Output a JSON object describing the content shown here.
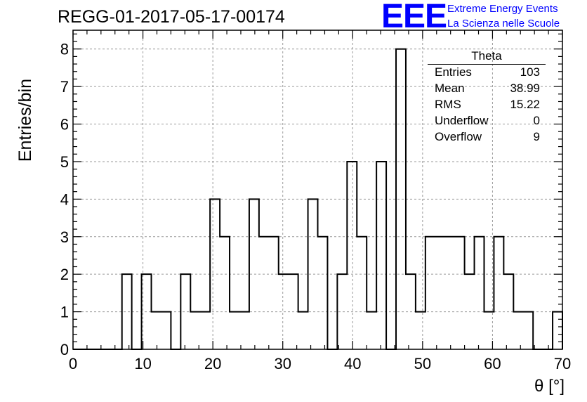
{
  "run_id": "REGG-01-2017-05-17-00174",
  "logo": {
    "mark": "EEE",
    "line1": "Extreme Energy Events",
    "line2": "La Scienza nelle Scuole",
    "color": "#0000ff"
  },
  "stats_box": {
    "title": "Theta",
    "rows": [
      {
        "label": "Entries",
        "value": "103"
      },
      {
        "label": "Mean",
        "value": "38.99"
      },
      {
        "label": "RMS",
        "value": "15.22"
      },
      {
        "label": "Underflow",
        "value": "0"
      },
      {
        "label": "Overflow",
        "value": "9"
      }
    ]
  },
  "chart_data": {
    "type": "bar",
    "style": "step-histogram",
    "xlabel": "θ [°]",
    "ylabel": "Entries/bin",
    "xlim": [
      0,
      70
    ],
    "ylim": [
      0,
      8.5
    ],
    "bin_width": 1.4,
    "bins": [
      {
        "x0": 7.0,
        "x1": 8.4,
        "count": 2
      },
      {
        "x0": 9.8,
        "x1": 11.2,
        "count": 2
      },
      {
        "x0": 11.2,
        "x1": 12.6,
        "count": 1
      },
      {
        "x0": 12.6,
        "x1": 14.0,
        "count": 1
      },
      {
        "x0": 15.4,
        "x1": 16.8,
        "count": 2
      },
      {
        "x0": 16.8,
        "x1": 18.2,
        "count": 1
      },
      {
        "x0": 18.2,
        "x1": 19.6,
        "count": 1
      },
      {
        "x0": 19.6,
        "x1": 21.0,
        "count": 4
      },
      {
        "x0": 21.0,
        "x1": 22.4,
        "count": 3
      },
      {
        "x0": 22.4,
        "x1": 23.8,
        "count": 1
      },
      {
        "x0": 23.8,
        "x1": 25.2,
        "count": 1
      },
      {
        "x0": 25.2,
        "x1": 26.6,
        "count": 4
      },
      {
        "x0": 26.6,
        "x1": 28.0,
        "count": 3
      },
      {
        "x0": 28.0,
        "x1": 29.4,
        "count": 3
      },
      {
        "x0": 29.4,
        "x1": 30.8,
        "count": 2
      },
      {
        "x0": 30.8,
        "x1": 32.2,
        "count": 2
      },
      {
        "x0": 32.2,
        "x1": 33.6,
        "count": 1
      },
      {
        "x0": 33.6,
        "x1": 35.0,
        "count": 4
      },
      {
        "x0": 35.0,
        "x1": 36.4,
        "count": 3
      },
      {
        "x0": 37.8,
        "x1": 39.2,
        "count": 2
      },
      {
        "x0": 39.2,
        "x1": 40.6,
        "count": 5
      },
      {
        "x0": 40.6,
        "x1": 42.0,
        "count": 3
      },
      {
        "x0": 42.0,
        "x1": 43.4,
        "count": 1
      },
      {
        "x0": 43.4,
        "x1": 44.8,
        "count": 5
      },
      {
        "x0": 46.2,
        "x1": 47.6,
        "count": 8
      },
      {
        "x0": 47.6,
        "x1": 49.0,
        "count": 2
      },
      {
        "x0": 49.0,
        "x1": 50.4,
        "count": 1
      },
      {
        "x0": 50.4,
        "x1": 51.8,
        "count": 3
      },
      {
        "x0": 51.8,
        "x1": 53.2,
        "count": 3
      },
      {
        "x0": 53.2,
        "x1": 54.6,
        "count": 3
      },
      {
        "x0": 54.6,
        "x1": 56.0,
        "count": 3
      },
      {
        "x0": 56.0,
        "x1": 57.4,
        "count": 2
      },
      {
        "x0": 57.4,
        "x1": 58.8,
        "count": 3
      },
      {
        "x0": 58.8,
        "x1": 60.2,
        "count": 1
      },
      {
        "x0": 60.2,
        "x1": 61.6,
        "count": 3
      },
      {
        "x0": 61.6,
        "x1": 63.0,
        "count": 2
      },
      {
        "x0": 63.0,
        "x1": 64.4,
        "count": 1
      },
      {
        "x0": 64.4,
        "x1": 65.8,
        "count": 1
      },
      {
        "x0": 68.6,
        "x1": 70.0,
        "count": 1
      }
    ],
    "x_ticks": [
      "0",
      "10",
      "20",
      "30",
      "40",
      "50",
      "60",
      "70"
    ],
    "y_ticks": [
      "0",
      "1",
      "2",
      "3",
      "4",
      "5",
      "6",
      "7",
      "8"
    ],
    "grid": true,
    "legend": "stats box top-right"
  }
}
